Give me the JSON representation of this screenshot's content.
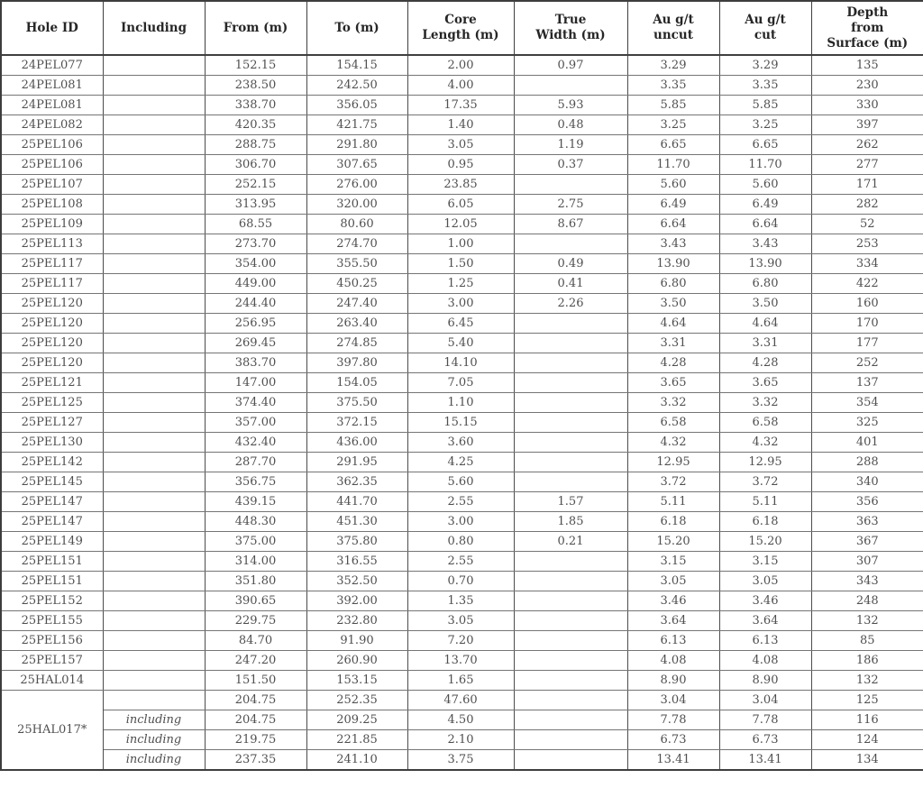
{
  "colors": {
    "background": "#ffffff",
    "header_text": "#262626",
    "body_text": "#4f4f4f",
    "grid_vertical": "#4c4c4c",
    "grid_horizontal": "#757575",
    "outer_border": "#3d3d3d"
  },
  "table": {
    "columns": [
      {
        "key": "hole_id",
        "lines": [
          "Hole ID"
        ]
      },
      {
        "key": "including",
        "lines": [
          "Including"
        ]
      },
      {
        "key": "from_m",
        "lines": [
          "From (m)"
        ]
      },
      {
        "key": "to_m",
        "lines": [
          "To (m)"
        ]
      },
      {
        "key": "core_length_m",
        "lines": [
          "Core",
          "Length (m)"
        ]
      },
      {
        "key": "true_width_m",
        "lines": [
          "True",
          "Width (m)"
        ]
      },
      {
        "key": "au_gpt_uncut",
        "lines": [
          "Au g/t",
          "uncut"
        ]
      },
      {
        "key": "au_gpt_cut",
        "lines": [
          "Au g/t",
          "cut"
        ]
      },
      {
        "key": "depth_from_surface_m",
        "lines": [
          "Depth",
          "from",
          "Surface (m)"
        ]
      }
    ],
    "merge": {
      "row": 32,
      "col": 0,
      "rowspan": 4
    },
    "rows": [
      [
        "24PEL077",
        "",
        "152.15",
        "154.15",
        "2.00",
        "0.97",
        "3.29",
        "3.29",
        "135"
      ],
      [
        "24PEL081",
        "",
        "238.50",
        "242.50",
        "4.00",
        "",
        "3.35",
        "3.35",
        "230"
      ],
      [
        "24PEL081",
        "",
        "338.70",
        "356.05",
        "17.35",
        "5.93",
        "5.85",
        "5.85",
        "330"
      ],
      [
        "24PEL082",
        "",
        "420.35",
        "421.75",
        "1.40",
        "0.48",
        "3.25",
        "3.25",
        "397"
      ],
      [
        "25PEL106",
        "",
        "288.75",
        "291.80",
        "3.05",
        "1.19",
        "6.65",
        "6.65",
        "262"
      ],
      [
        "25PEL106",
        "",
        "306.70",
        "307.65",
        "0.95",
        "0.37",
        "11.70",
        "11.70",
        "277"
      ],
      [
        "25PEL107",
        "",
        "252.15",
        "276.00",
        "23.85",
        "",
        "5.60",
        "5.60",
        "171"
      ],
      [
        "25PEL108",
        "",
        "313.95",
        "320.00",
        "6.05",
        "2.75",
        "6.49",
        "6.49",
        "282"
      ],
      [
        "25PEL109",
        "",
        "68.55",
        "80.60",
        "12.05",
        "8.67",
        "6.64",
        "6.64",
        "52"
      ],
      [
        "25PEL113",
        "",
        "273.70",
        "274.70",
        "1.00",
        "",
        "3.43",
        "3.43",
        "253"
      ],
      [
        "25PEL117",
        "",
        "354.00",
        "355.50",
        "1.50",
        "0.49",
        "13.90",
        "13.90",
        "334"
      ],
      [
        "25PEL117",
        "",
        "449.00",
        "450.25",
        "1.25",
        "0.41",
        "6.80",
        "6.80",
        "422"
      ],
      [
        "25PEL120",
        "",
        "244.40",
        "247.40",
        "3.00",
        "2.26",
        "3.50",
        "3.50",
        "160"
      ],
      [
        "25PEL120",
        "",
        "256.95",
        "263.40",
        "6.45",
        "",
        "4.64",
        "4.64",
        "170"
      ],
      [
        "25PEL120",
        "",
        "269.45",
        "274.85",
        "5.40",
        "",
        "3.31",
        "3.31",
        "177"
      ],
      [
        "25PEL120",
        "",
        "383.70",
        "397.80",
        "14.10",
        "",
        "4.28",
        "4.28",
        "252"
      ],
      [
        "25PEL121",
        "",
        "147.00",
        "154.05",
        "7.05",
        "",
        "3.65",
        "3.65",
        "137"
      ],
      [
        "25PEL125",
        "",
        "374.40",
        "375.50",
        "1.10",
        "",
        "3.32",
        "3.32",
        "354"
      ],
      [
        "25PEL127",
        "",
        "357.00",
        "372.15",
        "15.15",
        "",
        "6.58",
        "6.58",
        "325"
      ],
      [
        "25PEL130",
        "",
        "432.40",
        "436.00",
        "3.60",
        "",
        "4.32",
        "4.32",
        "401"
      ],
      [
        "25PEL142",
        "",
        "287.70",
        "291.95",
        "4.25",
        "",
        "12.95",
        "12.95",
        "288"
      ],
      [
        "25PEL145",
        "",
        "356.75",
        "362.35",
        "5.60",
        "",
        "3.72",
        "3.72",
        "340"
      ],
      [
        "25PEL147",
        "",
        "439.15",
        "441.70",
        "2.55",
        "1.57",
        "5.11",
        "5.11",
        "356"
      ],
      [
        "25PEL147",
        "",
        "448.30",
        "451.30",
        "3.00",
        "1.85",
        "6.18",
        "6.18",
        "363"
      ],
      [
        "25PEL149",
        "",
        "375.00",
        "375.80",
        "0.80",
        "0.21",
        "15.20",
        "15.20",
        "367"
      ],
      [
        "25PEL151",
        "",
        "314.00",
        "316.55",
        "2.55",
        "",
        "3.15",
        "3.15",
        "307"
      ],
      [
        "25PEL151",
        "",
        "351.80",
        "352.50",
        "0.70",
        "",
        "3.05",
        "3.05",
        "343"
      ],
      [
        "25PEL152",
        "",
        "390.65",
        "392.00",
        "1.35",
        "",
        "3.46",
        "3.46",
        "248"
      ],
      [
        "25PEL155",
        "",
        "229.75",
        "232.80",
        "3.05",
        "",
        "3.64",
        "3.64",
        "132"
      ],
      [
        "25PEL156",
        "",
        "84.70",
        "91.90",
        "7.20",
        "",
        "6.13",
        "6.13",
        "85"
      ],
      [
        "25PEL157",
        "",
        "247.20",
        "260.90",
        "13.70",
        "",
        "4.08",
        "4.08",
        "186"
      ],
      [
        "25HAL014",
        "",
        "151.50",
        "153.15",
        "1.65",
        "",
        "8.90",
        "8.90",
        "132"
      ],
      [
        "25HAL017*",
        "",
        "204.75",
        "252.35",
        "47.60",
        "",
        "3.04",
        "3.04",
        "125"
      ],
      [
        null,
        "including",
        "204.75",
        "209.25",
        "4.50",
        "",
        "7.78",
        "7.78",
        "116"
      ],
      [
        null,
        "including",
        "219.75",
        "221.85",
        "2.10",
        "",
        "6.73",
        "6.73",
        "124"
      ],
      [
        null,
        "including",
        "237.35",
        "241.10",
        "3.75",
        "",
        "13.41",
        "13.41",
        "134"
      ]
    ]
  }
}
